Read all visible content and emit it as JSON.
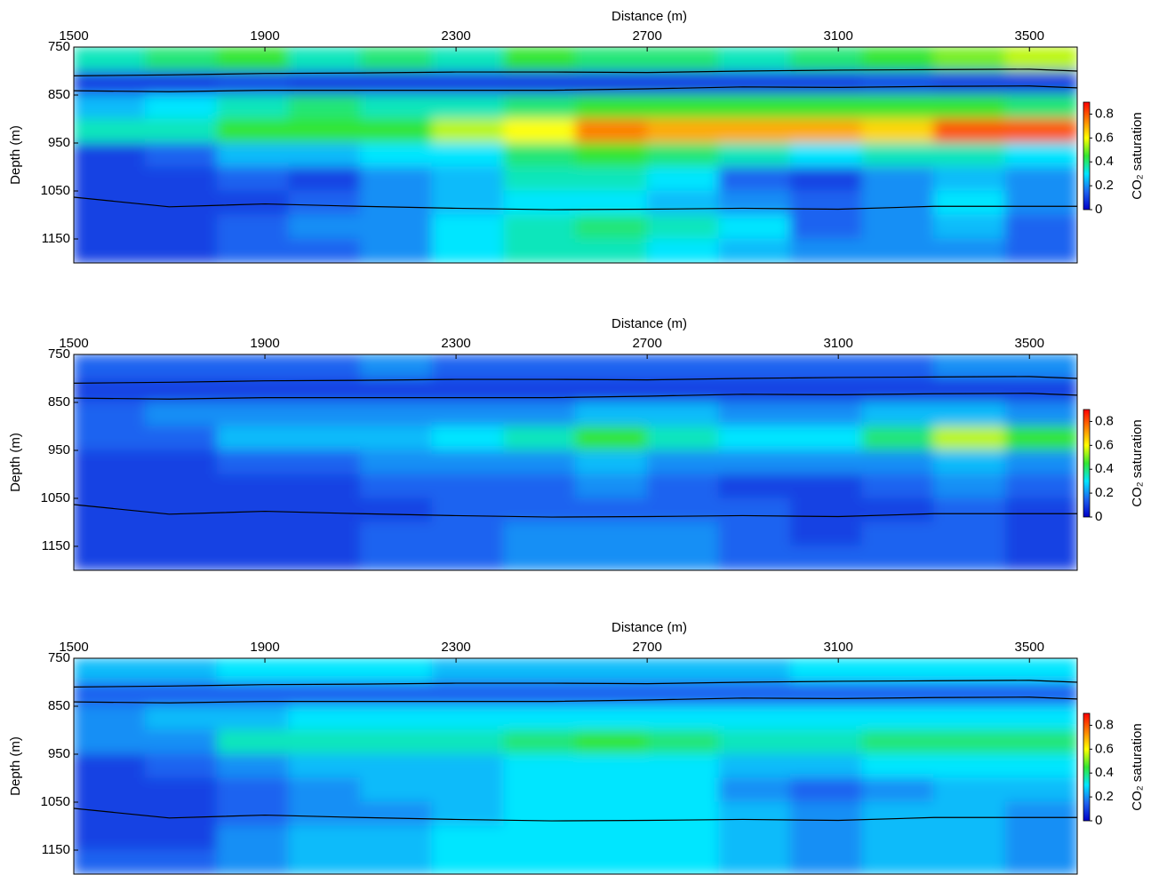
{
  "chart_data": [
    {
      "type": "heatmap",
      "xlabel": "Distance (m)",
      "ylabel": "Depth (m)",
      "colorbar_label": "CO₂ saturation",
      "xlim": [
        1500,
        3600
      ],
      "ylim": [
        750,
        1200
      ],
      "xticks": [
        1500,
        1900,
        2300,
        2700,
        3100,
        3500
      ],
      "yticks": [
        750,
        850,
        950,
        1050,
        1150
      ],
      "clim": [
        0,
        0.9
      ],
      "cticks": [
        0,
        0.2,
        0.4,
        0.6,
        0.8
      ],
      "colormap": [
        "#0000c8",
        "#1e64f0",
        "#00e6ff",
        "#32e632",
        "#ffff00",
        "#ff8000",
        "#ff0000"
      ],
      "x_edges": [
        1500,
        1650,
        1800,
        1950,
        2100,
        2250,
        2400,
        2550,
        2700,
        2850,
        3000,
        3150,
        3300,
        3450,
        3600
      ],
      "y_edges": [
        750,
        800,
        850,
        900,
        950,
        1000,
        1050,
        1100,
        1150,
        1200
      ],
      "values": [
        [
          0.35,
          0.4,
          0.45,
          0.35,
          0.4,
          0.35,
          0.45,
          0.4,
          0.4,
          0.35,
          0.4,
          0.45,
          0.5,
          0.55
        ],
        [
          0.1,
          0.1,
          0.12,
          0.1,
          0.1,
          0.1,
          0.1,
          0.1,
          0.1,
          0.1,
          0.1,
          0.12,
          0.1,
          0.1
        ],
        [
          0.25,
          0.3,
          0.35,
          0.4,
          0.35,
          0.35,
          0.4,
          0.45,
          0.45,
          0.45,
          0.45,
          0.45,
          0.45,
          0.4
        ],
        [
          0.35,
          0.35,
          0.45,
          0.45,
          0.45,
          0.55,
          0.6,
          0.75,
          0.7,
          0.7,
          0.7,
          0.65,
          0.8,
          0.8
        ],
        [
          0.1,
          0.15,
          0.25,
          0.25,
          0.3,
          0.3,
          0.4,
          0.45,
          0.4,
          0.35,
          0.3,
          0.35,
          0.35,
          0.3
        ],
        [
          0.1,
          0.1,
          0.15,
          0.1,
          0.2,
          0.25,
          0.35,
          0.35,
          0.3,
          0.15,
          0.1,
          0.2,
          0.25,
          0.2
        ],
        [
          0.1,
          0.1,
          0.1,
          0.15,
          0.2,
          0.25,
          0.3,
          0.3,
          0.25,
          0.2,
          0.15,
          0.2,
          0.3,
          0.2
        ],
        [
          0.1,
          0.1,
          0.15,
          0.2,
          0.2,
          0.3,
          0.35,
          0.4,
          0.35,
          0.3,
          0.15,
          0.2,
          0.25,
          0.15
        ],
        [
          0.1,
          0.1,
          0.15,
          0.15,
          0.2,
          0.3,
          0.35,
          0.35,
          0.3,
          0.25,
          0.2,
          0.2,
          0.2,
          0.15
        ]
      ],
      "horizons": [
        {
          "x": [
            1500,
            1700,
            1900,
            2100,
            2300,
            2500,
            2700,
            2900,
            3100,
            3300,
            3500,
            3600
          ],
          "depth": [
            810,
            808,
            805,
            804,
            802,
            802,
            803,
            800,
            798,
            797,
            796,
            800
          ]
        },
        {
          "x": [
            1500,
            1700,
            1900,
            2100,
            2300,
            2500,
            2700,
            2900,
            3100,
            3300,
            3500,
            3600
          ],
          "depth": [
            841,
            843,
            840,
            840,
            840,
            840,
            837,
            833,
            834,
            832,
            831,
            835
          ]
        },
        {
          "x": [
            1500,
            1700,
            1900,
            2100,
            2300,
            2500,
            2700,
            2900,
            3100,
            3300,
            3500,
            3600
          ],
          "depth": [
            1063,
            1083,
            1077,
            1082,
            1086,
            1089,
            1088,
            1086,
            1088,
            1082,
            1082,
            1082
          ]
        }
      ]
    },
    {
      "type": "heatmap",
      "xlabel": "Distance (m)",
      "ylabel": "Depth (m)",
      "colorbar_label": "CO₂ saturation",
      "xlim": [
        1500,
        3600
      ],
      "ylim": [
        750,
        1200
      ],
      "xticks": [
        1500,
        1900,
        2300,
        2700,
        3100,
        3500
      ],
      "yticks": [
        750,
        850,
        950,
        1050,
        1150
      ],
      "clim": [
        0,
        0.9
      ],
      "cticks": [
        0,
        0.2,
        0.4,
        0.6,
        0.8
      ],
      "colormap": [
        "#0000c8",
        "#1e64f0",
        "#00e6ff",
        "#32e632",
        "#ffff00",
        "#ff8000",
        "#ff0000"
      ],
      "x_edges": [
        1500,
        1650,
        1800,
        1950,
        2100,
        2250,
        2400,
        2550,
        2700,
        2850,
        3000,
        3150,
        3300,
        3450,
        3600
      ],
      "y_edges": [
        750,
        800,
        850,
        900,
        950,
        1000,
        1050,
        1100,
        1150,
        1200
      ],
      "values": [
        [
          0.15,
          0.15,
          0.15,
          0.15,
          0.2,
          0.15,
          0.15,
          0.15,
          0.15,
          0.15,
          0.15,
          0.15,
          0.2,
          0.2
        ],
        [
          0.1,
          0.1,
          0.1,
          0.1,
          0.1,
          0.1,
          0.1,
          0.1,
          0.1,
          0.1,
          0.1,
          0.1,
          0.1,
          0.1
        ],
        [
          0.15,
          0.2,
          0.2,
          0.2,
          0.2,
          0.2,
          0.2,
          0.25,
          0.25,
          0.2,
          0.2,
          0.25,
          0.25,
          0.2
        ],
        [
          0.15,
          0.15,
          0.25,
          0.25,
          0.25,
          0.3,
          0.35,
          0.45,
          0.35,
          0.3,
          0.3,
          0.4,
          0.55,
          0.45
        ],
        [
          0.1,
          0.1,
          0.15,
          0.15,
          0.2,
          0.2,
          0.2,
          0.25,
          0.2,
          0.2,
          0.2,
          0.2,
          0.25,
          0.2
        ],
        [
          0.1,
          0.1,
          0.1,
          0.1,
          0.15,
          0.15,
          0.15,
          0.2,
          0.15,
          0.1,
          0.1,
          0.15,
          0.2,
          0.15
        ],
        [
          0.1,
          0.1,
          0.1,
          0.1,
          0.1,
          0.15,
          0.15,
          0.15,
          0.15,
          0.15,
          0.1,
          0.1,
          0.15,
          0.1
        ],
        [
          0.1,
          0.1,
          0.1,
          0.1,
          0.15,
          0.15,
          0.2,
          0.2,
          0.2,
          0.15,
          0.1,
          0.15,
          0.15,
          0.1
        ],
        [
          0.1,
          0.1,
          0.1,
          0.1,
          0.15,
          0.15,
          0.2,
          0.2,
          0.2,
          0.15,
          0.15,
          0.15,
          0.15,
          0.1
        ]
      ],
      "horizons": [
        {
          "x": [
            1500,
            1700,
            1900,
            2100,
            2300,
            2500,
            2700,
            2900,
            3100,
            3300,
            3500,
            3600
          ],
          "depth": [
            810,
            808,
            805,
            804,
            802,
            802,
            803,
            800,
            798,
            797,
            796,
            800
          ]
        },
        {
          "x": [
            1500,
            1700,
            1900,
            2100,
            2300,
            2500,
            2700,
            2900,
            3100,
            3300,
            3500,
            3600
          ],
          "depth": [
            841,
            843,
            840,
            840,
            840,
            840,
            837,
            833,
            834,
            832,
            831,
            835
          ]
        },
        {
          "x": [
            1500,
            1700,
            1900,
            2100,
            2300,
            2500,
            2700,
            2900,
            3100,
            3300,
            3500,
            3600
          ],
          "depth": [
            1063,
            1083,
            1077,
            1082,
            1086,
            1089,
            1088,
            1086,
            1088,
            1082,
            1082,
            1082
          ]
        }
      ]
    },
    {
      "type": "heatmap",
      "xlabel": "Distance (m)",
      "ylabel": "Depth (m)",
      "colorbar_label": "CO₂ saturation",
      "xlim": [
        1500,
        3600
      ],
      "ylim": [
        750,
        1200
      ],
      "xticks": [
        1500,
        1900,
        2300,
        2700,
        3100,
        3500
      ],
      "yticks": [
        750,
        850,
        950,
        1050,
        1150
      ],
      "clim": [
        0,
        0.9
      ],
      "cticks": [
        0,
        0.2,
        0.4,
        0.6,
        0.8
      ],
      "colormap": [
        "#0000c8",
        "#1e64f0",
        "#00e6ff",
        "#32e632",
        "#ffff00",
        "#ff8000",
        "#ff0000"
      ],
      "x_edges": [
        1500,
        1650,
        1800,
        1950,
        2100,
        2250,
        2400,
        2550,
        2700,
        2850,
        3000,
        3150,
        3300,
        3450,
        3600
      ],
      "y_edges": [
        750,
        800,
        850,
        900,
        950,
        1000,
        1050,
        1100,
        1150,
        1200
      ],
      "values": [
        [
          0.25,
          0.25,
          0.3,
          0.3,
          0.3,
          0.25,
          0.25,
          0.25,
          0.25,
          0.25,
          0.3,
          0.3,
          0.3,
          0.3
        ],
        [
          0.15,
          0.15,
          0.15,
          0.15,
          0.15,
          0.15,
          0.15,
          0.15,
          0.15,
          0.15,
          0.15,
          0.15,
          0.15,
          0.15
        ],
        [
          0.2,
          0.25,
          0.25,
          0.3,
          0.3,
          0.3,
          0.3,
          0.3,
          0.3,
          0.3,
          0.3,
          0.3,
          0.3,
          0.3
        ],
        [
          0.2,
          0.2,
          0.35,
          0.35,
          0.35,
          0.35,
          0.4,
          0.45,
          0.4,
          0.35,
          0.35,
          0.4,
          0.4,
          0.4
        ],
        [
          0.1,
          0.15,
          0.2,
          0.25,
          0.25,
          0.25,
          0.3,
          0.3,
          0.3,
          0.25,
          0.25,
          0.3,
          0.3,
          0.3
        ],
        [
          0.1,
          0.1,
          0.15,
          0.2,
          0.25,
          0.25,
          0.3,
          0.3,
          0.3,
          0.2,
          0.15,
          0.2,
          0.25,
          0.25
        ],
        [
          0.1,
          0.1,
          0.15,
          0.2,
          0.2,
          0.25,
          0.3,
          0.3,
          0.3,
          0.25,
          0.2,
          0.25,
          0.25,
          0.2
        ],
        [
          0.1,
          0.1,
          0.2,
          0.25,
          0.25,
          0.3,
          0.3,
          0.3,
          0.3,
          0.25,
          0.2,
          0.25,
          0.25,
          0.2
        ],
        [
          0.15,
          0.15,
          0.2,
          0.25,
          0.25,
          0.3,
          0.3,
          0.3,
          0.3,
          0.25,
          0.2,
          0.25,
          0.25,
          0.2
        ]
      ],
      "horizons": [
        {
          "x": [
            1500,
            1700,
            1900,
            2100,
            2300,
            2500,
            2700,
            2900,
            3100,
            3300,
            3500,
            3600
          ],
          "depth": [
            810,
            808,
            805,
            804,
            802,
            802,
            803,
            800,
            798,
            797,
            796,
            800
          ]
        },
        {
          "x": [
            1500,
            1700,
            1900,
            2100,
            2300,
            2500,
            2700,
            2900,
            3100,
            3300,
            3500,
            3600
          ],
          "depth": [
            841,
            843,
            840,
            840,
            840,
            840,
            837,
            833,
            834,
            832,
            831,
            835
          ]
        },
        {
          "x": [
            1500,
            1700,
            1900,
            2100,
            2300,
            2500,
            2700,
            2900,
            3100,
            3300,
            3500,
            3600
          ],
          "depth": [
            1063,
            1083,
            1077,
            1082,
            1086,
            1089,
            1088,
            1086,
            1088,
            1082,
            1082,
            1082
          ]
        }
      ]
    }
  ]
}
